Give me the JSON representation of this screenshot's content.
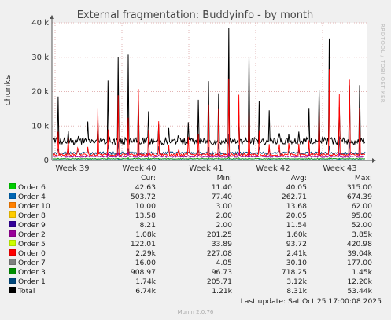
{
  "chart_data": {
    "type": "line",
    "title": "External fragmentation: Buddyinfo - by month",
    "ylabel": "chunks",
    "ylim": [
      0,
      40000
    ],
    "yticks": [
      {
        "value": 0,
        "label": "0"
      },
      {
        "value": 10000,
        "label": "10 k"
      },
      {
        "value": 20000,
        "label": "20 k"
      },
      {
        "value": 30000,
        "label": "30 k"
      },
      {
        "value": 40000,
        "label": "40 k"
      }
    ],
    "xticks": [
      "Week 39",
      "Week 40",
      "Week 41",
      "Week 42",
      "Week 43"
    ],
    "grid": true,
    "side_label": "RRDTOOL / TOBI OETIKER",
    "columns": [
      "Cur:",
      "Min:",
      "Avg:",
      "Max:"
    ],
    "series": [
      {
        "name": "Order 6",
        "color": "#00cc00",
        "cur": "42.63",
        "min": "11.40",
        "avg": "40.05",
        "max": "315.00",
        "peak": 315,
        "base": 40
      },
      {
        "name": "Order 4",
        "color": "#0066b3",
        "cur": "503.72",
        "min": "77.40",
        "avg": "262.71",
        "max": "674.39",
        "peak": 674,
        "base": 262
      },
      {
        "name": "Order 10",
        "color": "#ff8000",
        "cur": "10.00",
        "min": "3.00",
        "avg": "13.68",
        "max": "62.00",
        "peak": 62,
        "base": 13
      },
      {
        "name": "Order 8",
        "color": "#ffcc00",
        "cur": "13.58",
        "min": "2.00",
        "avg": "20.05",
        "max": "95.00",
        "peak": 95,
        "base": 20
      },
      {
        "name": "Order 9",
        "color": "#330099",
        "cur": "8.21",
        "min": "2.00",
        "avg": "11.54",
        "max": "52.00",
        "peak": 52,
        "base": 11
      },
      {
        "name": "Order 2",
        "color": "#990099",
        "cur": "1.08k",
        "min": "201.25",
        "avg": "1.60k",
        "max": "3.85k",
        "peak": 3850,
        "base": 1600
      },
      {
        "name": "Order 5",
        "color": "#ccff00",
        "cur": "122.01",
        "min": "33.89",
        "avg": "93.72",
        "max": "420.98",
        "peak": 421,
        "base": 93
      },
      {
        "name": "Order 0",
        "color": "#ff0000",
        "cur": "2.29k",
        "min": "227.08",
        "avg": "2.41k",
        "max": "39.04k",
        "peak": 39040,
        "base": 2410
      },
      {
        "name": "Order 7",
        "color": "#808080",
        "cur": "16.00",
        "min": "4.05",
        "avg": "30.10",
        "max": "177.00",
        "peak": 177,
        "base": 30
      },
      {
        "name": "Order 3",
        "color": "#008f00",
        "cur": "908.97",
        "min": "96.73",
        "avg": "718.25",
        "max": "1.45k",
        "peak": 1450,
        "base": 718
      },
      {
        "name": "Order 1",
        "color": "#00487d",
        "cur": "1.74k",
        "min": "205.71",
        "avg": "3.12k",
        "max": "12.20k",
        "peak": 12200,
        "base": 3120
      },
      {
        "name": "Total",
        "color": "#000000",
        "cur": "6.74k",
        "min": "1.21k",
        "avg": "8.31k",
        "max": "53.44k",
        "peak": 53440,
        "base": 8310
      }
    ],
    "last_update": "Last update: Sat Oct 25 17:00:08 2025",
    "version": "Munin 2.0.76"
  }
}
